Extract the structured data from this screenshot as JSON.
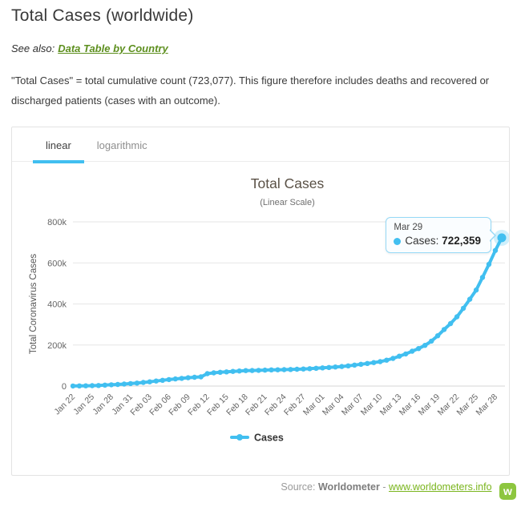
{
  "page": {
    "title": "Total Cases (worldwide)",
    "see_also_label": "See also:",
    "see_also_link": "Data Table by Country",
    "description": "\"Total Cases\" = total cumulative count (723,077). This figure therefore includes deaths and recovered or discharged patients (cases with an outcome)."
  },
  "tabs": [
    {
      "label": "linear",
      "active": true
    },
    {
      "label": "logarithmic",
      "active": false
    }
  ],
  "tooltip": {
    "date": "Mar 29",
    "series_label": "Cases:",
    "value": "722,359"
  },
  "footer": {
    "source_label": "Source:",
    "source_name": "Worldometer",
    "separator": "-",
    "link": "www.worldometers.info",
    "logo_letter": "w"
  },
  "colors": {
    "accent_blue": "#41bff0",
    "tooltip_border": "#96d9f6",
    "link_green": "#5d8f1e",
    "footer_link_green": "#7ab51d",
    "logo_green": "#8dc63f",
    "grid": "#e6e6e6",
    "axis_line": "#d6d6d6",
    "axis_text": "#666666",
    "chart_title_color": "#5a5146"
  },
  "chart_data": {
    "type": "line",
    "title": "Total Cases",
    "subtitle": "(Linear Scale)",
    "ylabel": "Total Coronavirus Cases",
    "ylim": [
      0,
      800000
    ],
    "yticks": [
      {
        "v": 0,
        "label": "0"
      },
      {
        "v": 200000,
        "label": "200k"
      },
      {
        "v": 400000,
        "label": "400k"
      },
      {
        "v": 600000,
        "label": "600k"
      },
      {
        "v": 800000,
        "label": "800k"
      }
    ],
    "grid": true,
    "legend_position": "bottom",
    "series_name": "Cases",
    "xtick_every": 3,
    "x": [
      "Jan 22",
      "Jan 23",
      "Jan 24",
      "Jan 25",
      "Jan 26",
      "Jan 27",
      "Jan 28",
      "Jan 29",
      "Jan 30",
      "Jan 31",
      "Feb 01",
      "Feb 02",
      "Feb 03",
      "Feb 04",
      "Feb 05",
      "Feb 06",
      "Feb 07",
      "Feb 08",
      "Feb 09",
      "Feb 10",
      "Feb 11",
      "Feb 12",
      "Feb 13",
      "Feb 14",
      "Feb 15",
      "Feb 16",
      "Feb 17",
      "Feb 18",
      "Feb 19",
      "Feb 20",
      "Feb 21",
      "Feb 22",
      "Feb 23",
      "Feb 24",
      "Feb 25",
      "Feb 26",
      "Feb 27",
      "Feb 28",
      "Feb 29",
      "Mar 01",
      "Mar 02",
      "Mar 03",
      "Mar 04",
      "Mar 05",
      "Mar 06",
      "Mar 07",
      "Mar 08",
      "Mar 09",
      "Mar 10",
      "Mar 11",
      "Mar 12",
      "Mar 13",
      "Mar 14",
      "Mar 15",
      "Mar 16",
      "Mar 17",
      "Mar 18",
      "Mar 19",
      "Mar 20",
      "Mar 21",
      "Mar 22",
      "Mar 23",
      "Mar 24",
      "Mar 25",
      "Mar 26",
      "Mar 27",
      "Mar 28",
      "Mar 29"
    ],
    "values": [
      580,
      845,
      1315,
      2019,
      2800,
      4581,
      6058,
      7813,
      9823,
      11950,
      14553,
      17391,
      20630,
      24545,
      28266,
      31439,
      34876,
      37552,
      40553,
      43099,
      44919,
      60330,
      64437,
      67100,
      69197,
      71329,
      73332,
      75184,
      75700,
      76677,
      77673,
      78651,
      79205,
      80087,
      80828,
      81820,
      83113,
      84615,
      86604,
      88585,
      90443,
      93016,
      95314,
      98425,
      102050,
      106099,
      109991,
      114381,
      118948,
      126214,
      134576,
      145483,
      156653,
      169593,
      182490,
      198234,
      218822,
      244933,
      275597,
      304524,
      337459,
      378830,
      422915,
      467710,
      529591,
      593291,
      660706,
      722359
    ],
    "highlight_point": {
      "x": "Mar 29",
      "value": 722359
    }
  }
}
